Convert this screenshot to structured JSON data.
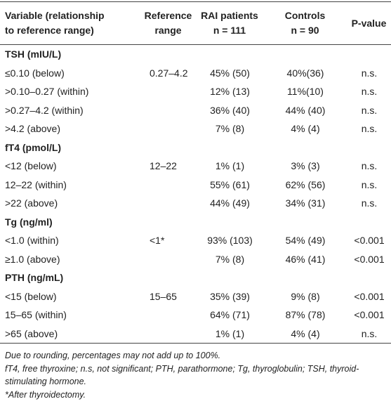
{
  "table": {
    "header": [
      [
        "Variable (relationship",
        "to reference range)"
      ],
      [
        "Reference",
        "range"
      ],
      [
        "RAI patients",
        "n = 111"
      ],
      [
        "Controls",
        "n = 90"
      ],
      [
        "P-value"
      ]
    ],
    "sections": [
      {
        "title": "TSH (mIU/L)",
        "rows": [
          [
            "≤0.10 (below)",
            "0.27–4.2",
            "45% (50)",
            "40%(36)",
            "n.s."
          ],
          [
            ">0.10–0.27 (within)",
            null,
            "12% (13)",
            "11%(10)",
            "n.s."
          ],
          [
            ">0.27–4.2 (within)",
            null,
            "36% (40)",
            "44% (40)",
            "n.s."
          ],
          [
            ">4.2 (above)",
            null,
            "7% (8)",
            "4% (4)",
            "n.s."
          ]
        ]
      },
      {
        "title": "fT4 (pmol/L)",
        "rows": [
          [
            "<12 (below)",
            "12–22",
            "1% (1)",
            "3% (3)",
            "n.s."
          ],
          [
            "12–22 (within)",
            null,
            "55% (61)",
            "62% (56)",
            "n.s."
          ],
          [
            ">22 (above)",
            null,
            "44% (49)",
            "34% (31)",
            "n.s."
          ]
        ]
      },
      {
        "title": "Tg (ng/ml)",
        "rows": [
          [
            "<1.0 (within)",
            "<1*",
            "93% (103)",
            "54% (49)",
            "<0.001"
          ],
          [
            "≥1.0 (above)",
            null,
            "7% (8)",
            "46% (41)",
            "<0.001"
          ]
        ]
      },
      {
        "title": "PTH (ng/mL)",
        "rows": [
          [
            "<15 (below)",
            "15–65",
            "35% (39)",
            "9% (8)",
            "<0.001"
          ],
          [
            "15–65 (within)",
            null,
            "64% (71)",
            "87% (78)",
            "<0.001"
          ],
          [
            ">65 (above)",
            null,
            "1% (1)",
            "4% (4)",
            "n.s."
          ]
        ]
      }
    ],
    "footnotes": [
      "Due to rounding, percentages may not add up to 100%.",
      "fT4, free thyroxine; n.s, not significant; PTH, parathormone; Tg, thyroglobulin; TSH, thyroid-stimulating hormone.",
      "*After thyroidectomy."
    ]
  }
}
